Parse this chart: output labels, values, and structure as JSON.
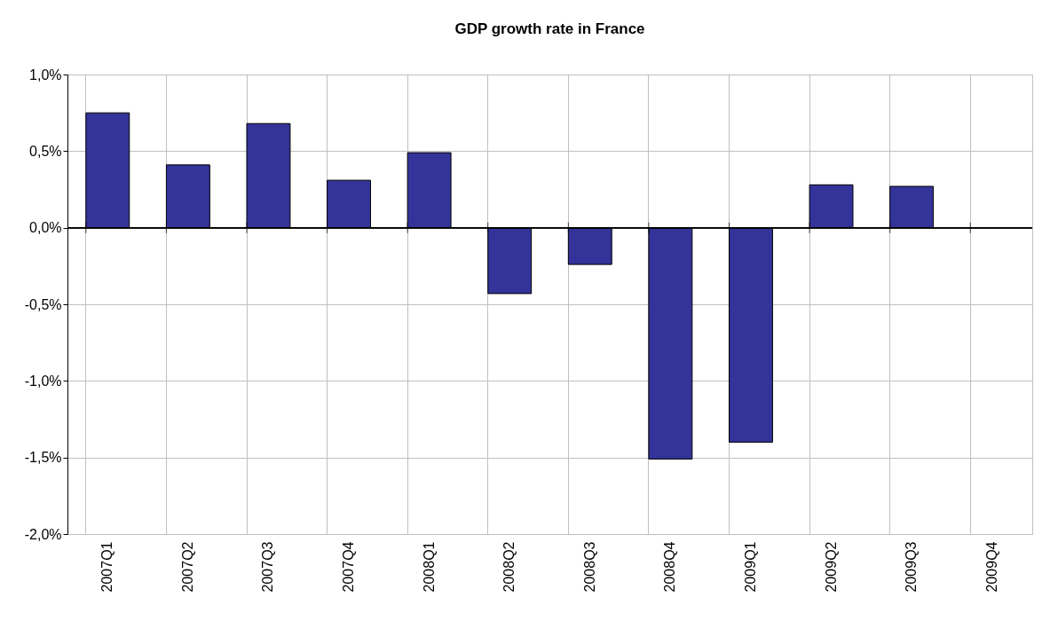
{
  "chart_data": {
    "type": "bar",
    "title": "GDP growth rate in France",
    "categories": [
      "2007Q1",
      "2007Q2",
      "2007Q3",
      "2007Q4",
      "2008Q1",
      "2008Q2",
      "2008Q3",
      "2008Q4",
      "2009Q1",
      "2009Q2",
      "2009Q3",
      "2009Q4"
    ],
    "values": [
      0.75,
      0.41,
      0.68,
      0.31,
      0.49,
      -0.43,
      -0.24,
      -1.51,
      -1.4,
      0.28,
      0.27,
      null
    ],
    "color": "#333399",
    "ylim": [
      -2,
      1
    ],
    "yticks": [
      {
        "value": -2,
        "label": "-2,0%"
      },
      {
        "value": -1.5,
        "label": "-1,5%"
      },
      {
        "value": -1,
        "label": "-1,0%"
      },
      {
        "value": -0.5,
        "label": "-0,5%"
      },
      {
        "value": 0,
        "label": "0,0%"
      },
      {
        "value": 0.5,
        "label": "0,5%"
      },
      {
        "value": 1,
        "label": "1,0%"
      }
    ],
    "grid": true
  }
}
